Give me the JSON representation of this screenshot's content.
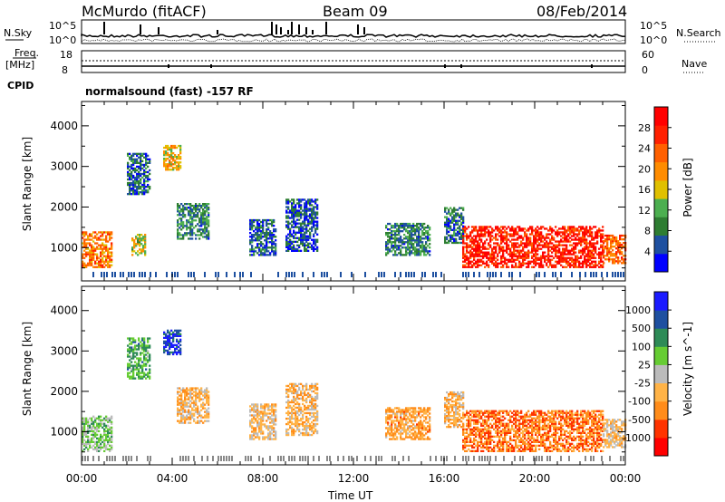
{
  "header": {
    "station": "McMurdo (fitACF)",
    "beam": "Beam 09",
    "date": "08/Feb/2014"
  },
  "noise_panel": {
    "left_label": "N.Sky",
    "right_label": "N.Search",
    "left_ticks": [
      "10^5",
      "10^0"
    ],
    "right_ticks": [
      "10^5",
      "10^0"
    ]
  },
  "freq_panel": {
    "left_label_top": "Freq.",
    "left_label_unit": "[MHz]",
    "right_label": "Nave",
    "left_ticks": [
      "18",
      "8"
    ],
    "right_ticks": [
      "60",
      "0"
    ]
  },
  "cpid": {
    "label": "CPID",
    "text": "normalsound (fast) -157 RF"
  },
  "x_axis": {
    "label": "Time UT",
    "ticks": [
      "00:00",
      "04:00",
      "08:00",
      "12:00",
      "16:00",
      "20:00",
      "00:00"
    ]
  },
  "colors": {
    "power_scale": [
      "#0000ff",
      "#1e50a0",
      "#2e7d32",
      "#4caf50",
      "#e0c000",
      "#ff8c00",
      "#ff6000",
      "#ff2000",
      "#ff0000"
    ],
    "velocity_scale": [
      "#ff0000",
      "#ff3300",
      "#ff8c1a",
      "#ffb347",
      "#bbbbbb",
      "#66cc33",
      "#2e8b57",
      "#1e50a0",
      "#1a1aff"
    ]
  },
  "chart_data": [
    {
      "type": "heatmap",
      "title": "",
      "xlabel": "",
      "ylabel": "Slant Range [km]",
      "yticks": [
        "1000",
        "2000",
        "3000",
        "4000"
      ],
      "ylim": [
        180,
        4600
      ],
      "xlim_hours": [
        0,
        24
      ],
      "colorbar_label": "Power [dB]",
      "colorbar_ticks": [
        "4",
        "8",
        "12",
        "16",
        "20",
        "24",
        "28"
      ],
      "clim": [
        0,
        30
      ],
      "regions": [
        {
          "t0": 0.0,
          "t1": 1.3,
          "r0": 500,
          "r1": 1400,
          "v": 20
        },
        {
          "t0": 2.0,
          "t1": 3.0,
          "r0": 2300,
          "r1": 3300,
          "v": 6
        },
        {
          "t0": 2.2,
          "t1": 2.8,
          "r0": 800,
          "r1": 1300,
          "v": 14
        },
        {
          "t0": 3.6,
          "t1": 4.4,
          "r0": 2900,
          "r1": 3500,
          "v": 16
        },
        {
          "t0": 4.2,
          "t1": 5.6,
          "r0": 1200,
          "r1": 2100,
          "v": 8
        },
        {
          "t0": 7.4,
          "t1": 8.6,
          "r0": 800,
          "r1": 1700,
          "v": 6
        },
        {
          "t0": 9.0,
          "t1": 10.4,
          "r0": 900,
          "r1": 2200,
          "v": 5
        },
        {
          "t0": 13.4,
          "t1": 15.4,
          "r0": 800,
          "r1": 1600,
          "v": 8
        },
        {
          "t0": 16.0,
          "t1": 16.8,
          "r0": 1100,
          "r1": 2000,
          "v": 7
        },
        {
          "t0": 16.8,
          "t1": 23.0,
          "r0": 500,
          "r1": 1500,
          "v": 26
        },
        {
          "t0": 23.0,
          "t1": 24.0,
          "r0": 600,
          "r1": 1300,
          "v": 22
        }
      ]
    },
    {
      "type": "heatmap",
      "title": "",
      "xlabel": "Time UT",
      "ylabel": "Slant Range [km]",
      "yticks": [
        "1000",
        "2000",
        "3000",
        "4000"
      ],
      "ylim": [
        180,
        4600
      ],
      "xlim_hours": [
        0,
        24
      ],
      "colorbar_label": "Velocity [m s^-1]",
      "colorbar_ticks": [
        "-1000",
        "-500",
        "-100",
        "-25",
        "25",
        "100",
        "500",
        "1000"
      ],
      "clim": [
        -1200,
        1200
      ],
      "regions": [
        {
          "t0": 0.0,
          "t1": 1.3,
          "r0": 500,
          "r1": 1400,
          "v": 200
        },
        {
          "t0": 2.0,
          "t1": 3.0,
          "r0": 2300,
          "r1": 3300,
          "v": 400
        },
        {
          "t0": 3.6,
          "t1": 4.4,
          "r0": 2900,
          "r1": 3500,
          "v": 900
        },
        {
          "t0": 4.2,
          "t1": 5.6,
          "r0": 1200,
          "r1": 2100,
          "v": -300
        },
        {
          "t0": 7.4,
          "t1": 8.6,
          "r0": 800,
          "r1": 1700,
          "v": -200
        },
        {
          "t0": 9.0,
          "t1": 10.4,
          "r0": 900,
          "r1": 2200,
          "v": -250
        },
        {
          "t0": 13.4,
          "t1": 15.4,
          "r0": 800,
          "r1": 1600,
          "v": -400
        },
        {
          "t0": 16.0,
          "t1": 16.8,
          "r0": 1100,
          "r1": 2000,
          "v": -300
        },
        {
          "t0": 16.8,
          "t1": 23.0,
          "r0": 500,
          "r1": 1500,
          "v": -600
        },
        {
          "t0": 23.0,
          "t1": 24.0,
          "r0": 600,
          "r1": 1300,
          "v": -200
        }
      ]
    }
  ]
}
